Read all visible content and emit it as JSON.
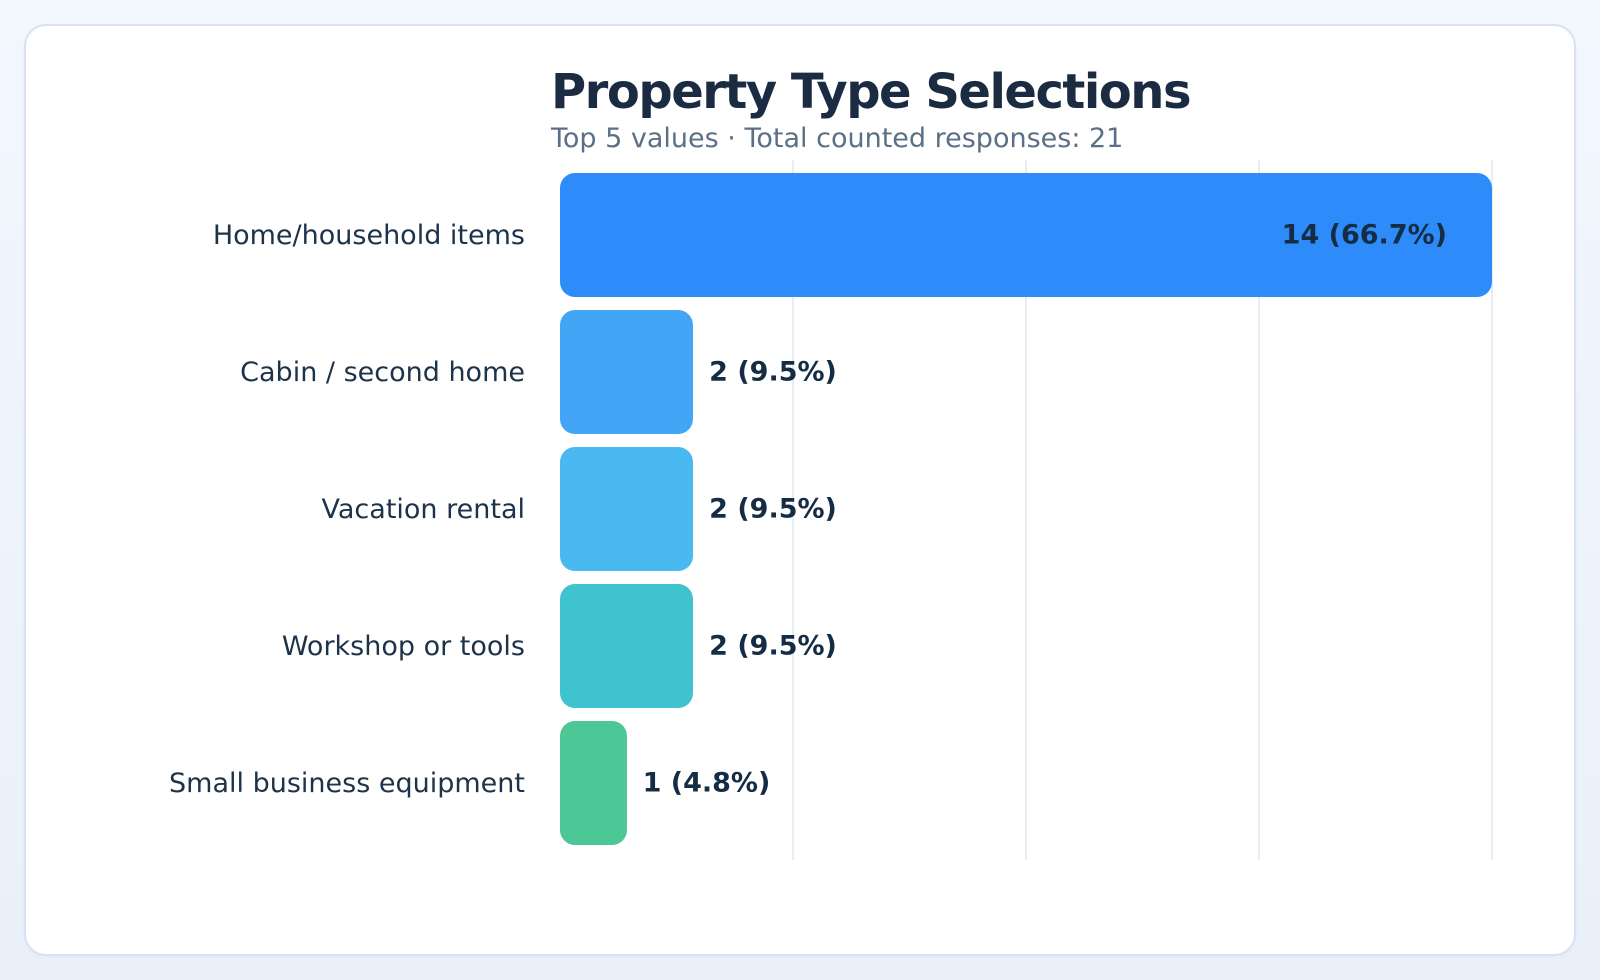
{
  "page": {
    "background_top": "#f3f7fe",
    "background_bottom": "#e9f0fa"
  },
  "card": {
    "background": "#ffffff",
    "border_color": "#d8e3f1"
  },
  "chart_data": {
    "type": "bar",
    "orientation": "horizontal",
    "title": "Property Type Selections",
    "subtitle": "Top 5 values · Total counted responses: 21",
    "top_n": 5,
    "total_counted_responses": 21,
    "categories": [
      "Home/household items",
      "Cabin / second home",
      "Vacation rental",
      "Workshop or tools",
      "Small business equipment"
    ],
    "values": [
      14,
      2,
      2,
      2,
      1
    ],
    "percentages": [
      66.7,
      9.5,
      9.5,
      9.5,
      4.8
    ],
    "value_labels": [
      "14 (66.7%)",
      "2 (9.5%)",
      "2 (9.5%)",
      "2 (9.5%)",
      "1 (4.8%)"
    ],
    "xlim": [
      0,
      14
    ],
    "gridlines_at": [
      3.5,
      7,
      10.5,
      14
    ],
    "grid": true,
    "legend": "none",
    "xlabel": "",
    "ylabel": "",
    "tick_labels_visible": false,
    "bar_colors": [
      "#2e8cfa",
      "#42a5f5",
      "#4ab9f1",
      "#3fc4cf",
      "#4cc795"
    ],
    "title_color": "#1b2c42",
    "subtitle_color": "#5b7086",
    "category_label_color": "#1d3349",
    "value_label_color": "#142c44",
    "gridline_color": "#e7edf4"
  }
}
